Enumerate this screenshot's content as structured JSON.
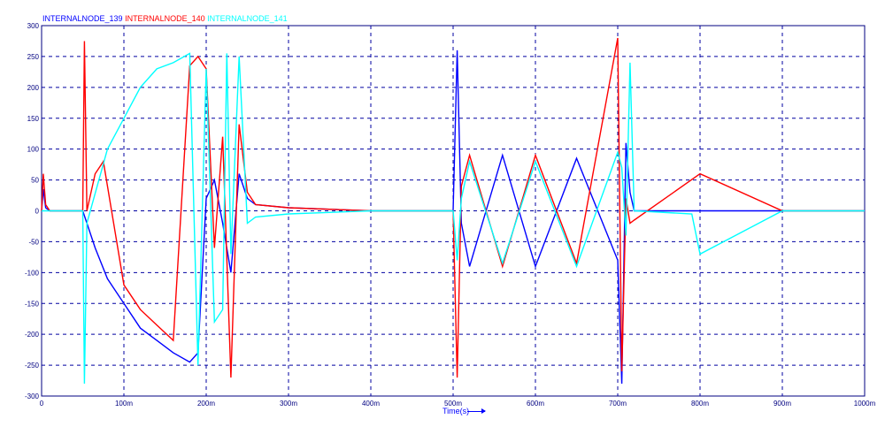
{
  "chart_data": {
    "type": "line",
    "title": "",
    "xlabel": "Time(s)",
    "ylabel": "",
    "xlim": [
      0,
      1000
    ],
    "ylim": [
      -300,
      300
    ],
    "xticks": [
      0,
      100,
      200,
      300,
      400,
      500,
      600,
      700,
      800,
      900,
      1000
    ],
    "xtick_labels": [
      "0",
      "100m",
      "200m",
      "300m",
      "400m",
      "500m",
      "600m",
      "700m",
      "800m",
      "900m",
      "1000m"
    ],
    "yticks": [
      300,
      250,
      200,
      150,
      100,
      50,
      0,
      -50,
      -100,
      -150,
      -200,
      -250,
      -300
    ],
    "ytick_labels": [
      "300",
      "250",
      "200",
      "150",
      "100",
      "50",
      "0",
      "-50",
      "-100",
      "-150",
      "-200",
      "-250",
      "-300"
    ],
    "grid": true,
    "legend_position": "top-left",
    "series": [
      {
        "name": "INTERNALNODE_139",
        "color": "#0000ff",
        "x": [
          0,
          2,
          5,
          10,
          50,
          55,
          65,
          80,
          100,
          120,
          140,
          160,
          180,
          190,
          200,
          210,
          220,
          230,
          240,
          250,
          260,
          300,
          400,
          500,
          505,
          510,
          520,
          560,
          600,
          650,
          700,
          705,
          710,
          715,
          720,
          800,
          900,
          1000
        ],
        "y": [
          0,
          35,
          5,
          0,
          0,
          -20,
          -60,
          -110,
          -150,
          -190,
          -210,
          -230,
          -245,
          -230,
          20,
          50,
          -20,
          -100,
          60,
          20,
          10,
          5,
          0,
          0,
          260,
          -20,
          -90,
          90,
          -90,
          85,
          -80,
          -280,
          110,
          30,
          0,
          0,
          0,
          0
        ]
      },
      {
        "name": "INTERNALNODE_140",
        "color": "#ff0000",
        "x": [
          0,
          2,
          5,
          10,
          50,
          52,
          55,
          65,
          75,
          100,
          120,
          140,
          160,
          180,
          190,
          200,
          210,
          220,
          230,
          240,
          250,
          260,
          300,
          400,
          500,
          505,
          510,
          520,
          560,
          600,
          650,
          700,
          705,
          710,
          715,
          720,
          800,
          900,
          1000
        ],
        "y": [
          0,
          60,
          10,
          0,
          0,
          275,
          0,
          60,
          80,
          -120,
          -160,
          -185,
          -210,
          235,
          250,
          230,
          -60,
          120,
          -270,
          140,
          30,
          10,
          5,
          0,
          0,
          -270,
          40,
          90,
          -90,
          90,
          -85,
          280,
          -260,
          20,
          -20,
          -15,
          60,
          0,
          0
        ]
      },
      {
        "name": "INTERNALNODE_141",
        "color": "#00ffff",
        "x": [
          0,
          10,
          50,
          52,
          55,
          80,
          100,
          120,
          140,
          160,
          180,
          190,
          200,
          210,
          220,
          225,
          230,
          240,
          250,
          260,
          300,
          400,
          500,
          505,
          510,
          520,
          560,
          600,
          650,
          700,
          705,
          710,
          715,
          720,
          790,
          800,
          900,
          1000
        ],
        "y": [
          0,
          0,
          0,
          -280,
          -20,
          100,
          150,
          200,
          230,
          240,
          255,
          -250,
          230,
          -180,
          -160,
          255,
          -70,
          250,
          -20,
          -10,
          -5,
          0,
          0,
          -80,
          20,
          80,
          -85,
          80,
          -90,
          95,
          70,
          -40,
          240,
          0,
          -5,
          -70,
          0,
          0
        ]
      }
    ]
  }
}
